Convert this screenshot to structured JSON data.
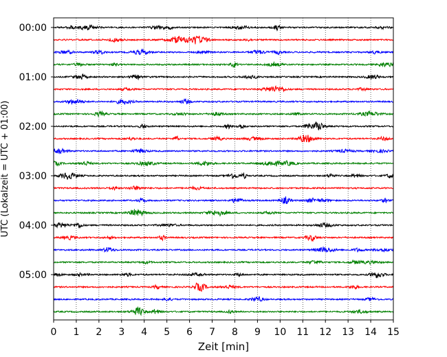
{
  "chart_data": {
    "type": "line",
    "title": "",
    "xlabel": "Zeit  [min]",
    "ylabel": "UTC (Lokalzeit = UTC + 01:00)",
    "xlim": [
      0,
      15
    ],
    "xticks": [
      0,
      1,
      2,
      3,
      4,
      5,
      6,
      7,
      8,
      9,
      10,
      11,
      12,
      13,
      14,
      15
    ],
    "yticks": [
      "00:00",
      "01:00",
      "02:00",
      "03:00",
      "04:00",
      "05:00"
    ],
    "grid": "vertical dotted",
    "trace_interval_min": 15,
    "traces_per_hour": 4,
    "trace_count": 24,
    "trace_colors": [
      "#000000",
      "#ff0000",
      "#0000ff",
      "#008000"
    ],
    "series": [
      {
        "start": "00:00"
      },
      {
        "start": "00:15"
      },
      {
        "start": "00:30"
      },
      {
        "start": "00:45"
      },
      {
        "start": "01:00"
      },
      {
        "start": "01:15"
      },
      {
        "start": "01:30"
      },
      {
        "start": "01:45"
      },
      {
        "start": "02:00"
      },
      {
        "start": "02:15"
      },
      {
        "start": "02:30"
      },
      {
        "start": "02:45"
      },
      {
        "start": "03:00"
      },
      {
        "start": "03:15"
      },
      {
        "start": "03:30"
      },
      {
        "start": "03:45"
      },
      {
        "start": "04:00"
      },
      {
        "start": "04:15"
      },
      {
        "start": "04:30"
      },
      {
        "start": "04:45"
      },
      {
        "start": "05:00"
      },
      {
        "start": "05:15"
      },
      {
        "start": "05:30"
      },
      {
        "start": "05:45"
      }
    ]
  }
}
